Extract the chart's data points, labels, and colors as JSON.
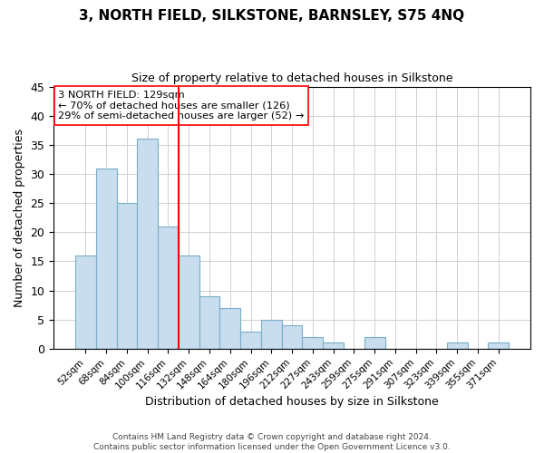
{
  "title": "3, NORTH FIELD, SILKSTONE, BARNSLEY, S75 4NQ",
  "subtitle": "Size of property relative to detached houses in Silkstone",
  "xlabel": "Distribution of detached houses by size in Silkstone",
  "ylabel": "Number of detached properties",
  "bar_labels": [
    "52sqm",
    "68sqm",
    "84sqm",
    "100sqm",
    "116sqm",
    "132sqm",
    "148sqm",
    "164sqm",
    "180sqm",
    "196sqm",
    "212sqm",
    "227sqm",
    "243sqm",
    "259sqm",
    "275sqm",
    "291sqm",
    "307sqm",
    "323sqm",
    "339sqm",
    "355sqm",
    "371sqm"
  ],
  "bar_values": [
    16,
    31,
    25,
    36,
    21,
    16,
    9,
    7,
    3,
    5,
    4,
    2,
    1,
    0,
    2,
    0,
    0,
    0,
    1,
    0,
    1
  ],
  "bar_color": "#c8dded",
  "bar_edge_color": "#7aaec8",
  "red_line_index": 5,
  "annotation_title": "3 NORTH FIELD: 129sqm",
  "annotation_line1": "← 70% of detached houses are smaller (126)",
  "annotation_line2": "29% of semi-detached houses are larger (52) →",
  "ylim": [
    0,
    45
  ],
  "yticks": [
    0,
    5,
    10,
    15,
    20,
    25,
    30,
    35,
    40,
    45
  ],
  "footer1": "Contains HM Land Registry data © Crown copyright and database right 2024.",
  "footer2": "Contains public sector information licensed under the Open Government Licence v3.0.",
  "background_color": "#ffffff",
  "grid_color": "#d0d0d0"
}
